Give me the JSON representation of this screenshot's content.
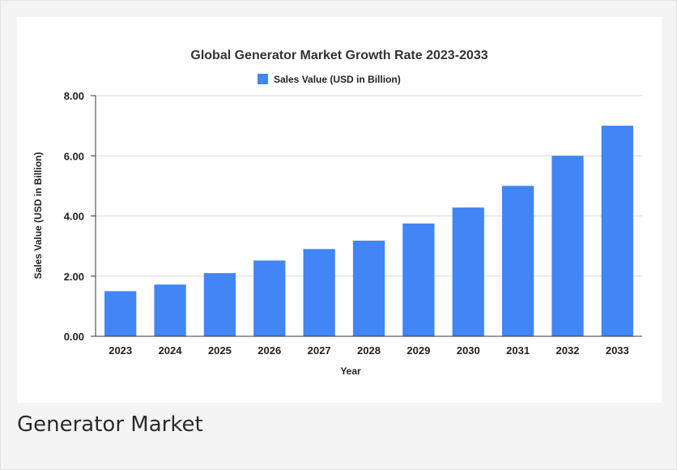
{
  "caption": "Generator Market",
  "colors": {
    "bar": "#4285f4",
    "grid": "#d9d9d9",
    "axis": "#333333"
  },
  "chart_data": {
    "type": "bar",
    "title": "Global Generator Market Growth Rate 2023-2033",
    "xlabel": "Year",
    "ylabel": "Sales Value (USD in Billion)",
    "legend": {
      "position": "top",
      "entries": [
        "Sales Value (USD in Billion)"
      ]
    },
    "grid": true,
    "ylim": [
      0,
      8
    ],
    "yticks": [
      "0.00",
      "2.00",
      "4.00",
      "6.00",
      "8.00"
    ],
    "categories": [
      "2023",
      "2024",
      "2025",
      "2026",
      "2027",
      "2028",
      "2029",
      "2030",
      "2031",
      "2032",
      "2033"
    ],
    "series": [
      {
        "name": "Sales Value (USD in Billion)",
        "values": [
          1.5,
          1.72,
          2.1,
          2.52,
          2.9,
          3.18,
          3.75,
          4.28,
          5.0,
          6.0,
          7.0
        ]
      }
    ]
  }
}
